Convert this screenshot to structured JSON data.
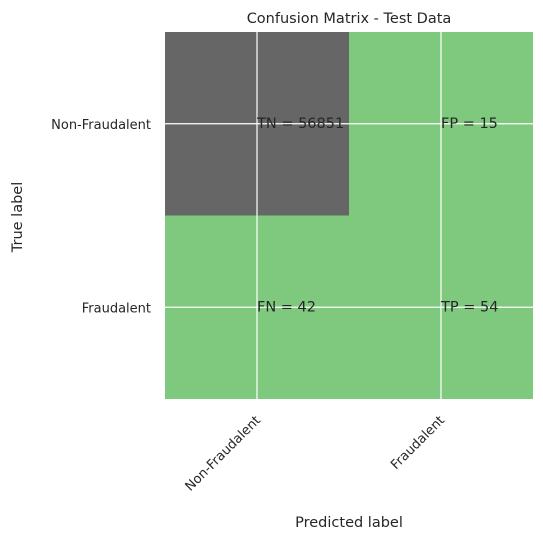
{
  "chart_data": {
    "type": "heatmap",
    "title": "Confusion Matrix - Test Data",
    "xlabel": "Predicted label",
    "ylabel": "True label",
    "x_categories": [
      "Non-Fraudalent",
      "Fraudalent"
    ],
    "y_categories": [
      "Non-Fraudalent",
      "Fraudalent"
    ],
    "cells": [
      {
        "row": 0,
        "col": 0,
        "label": "TN = 56851",
        "value": 56851
      },
      {
        "row": 0,
        "col": 1,
        "label": "FP = 15",
        "value": 15
      },
      {
        "row": 1,
        "col": 0,
        "label": "FN = 42",
        "value": 42
      },
      {
        "row": 1,
        "col": 1,
        "label": "TP = 54",
        "value": 54
      }
    ],
    "colors": {
      "high": "#666666",
      "low": "#7fc97f",
      "grid": "#ffffff",
      "text": "#262626"
    },
    "grid": true
  }
}
